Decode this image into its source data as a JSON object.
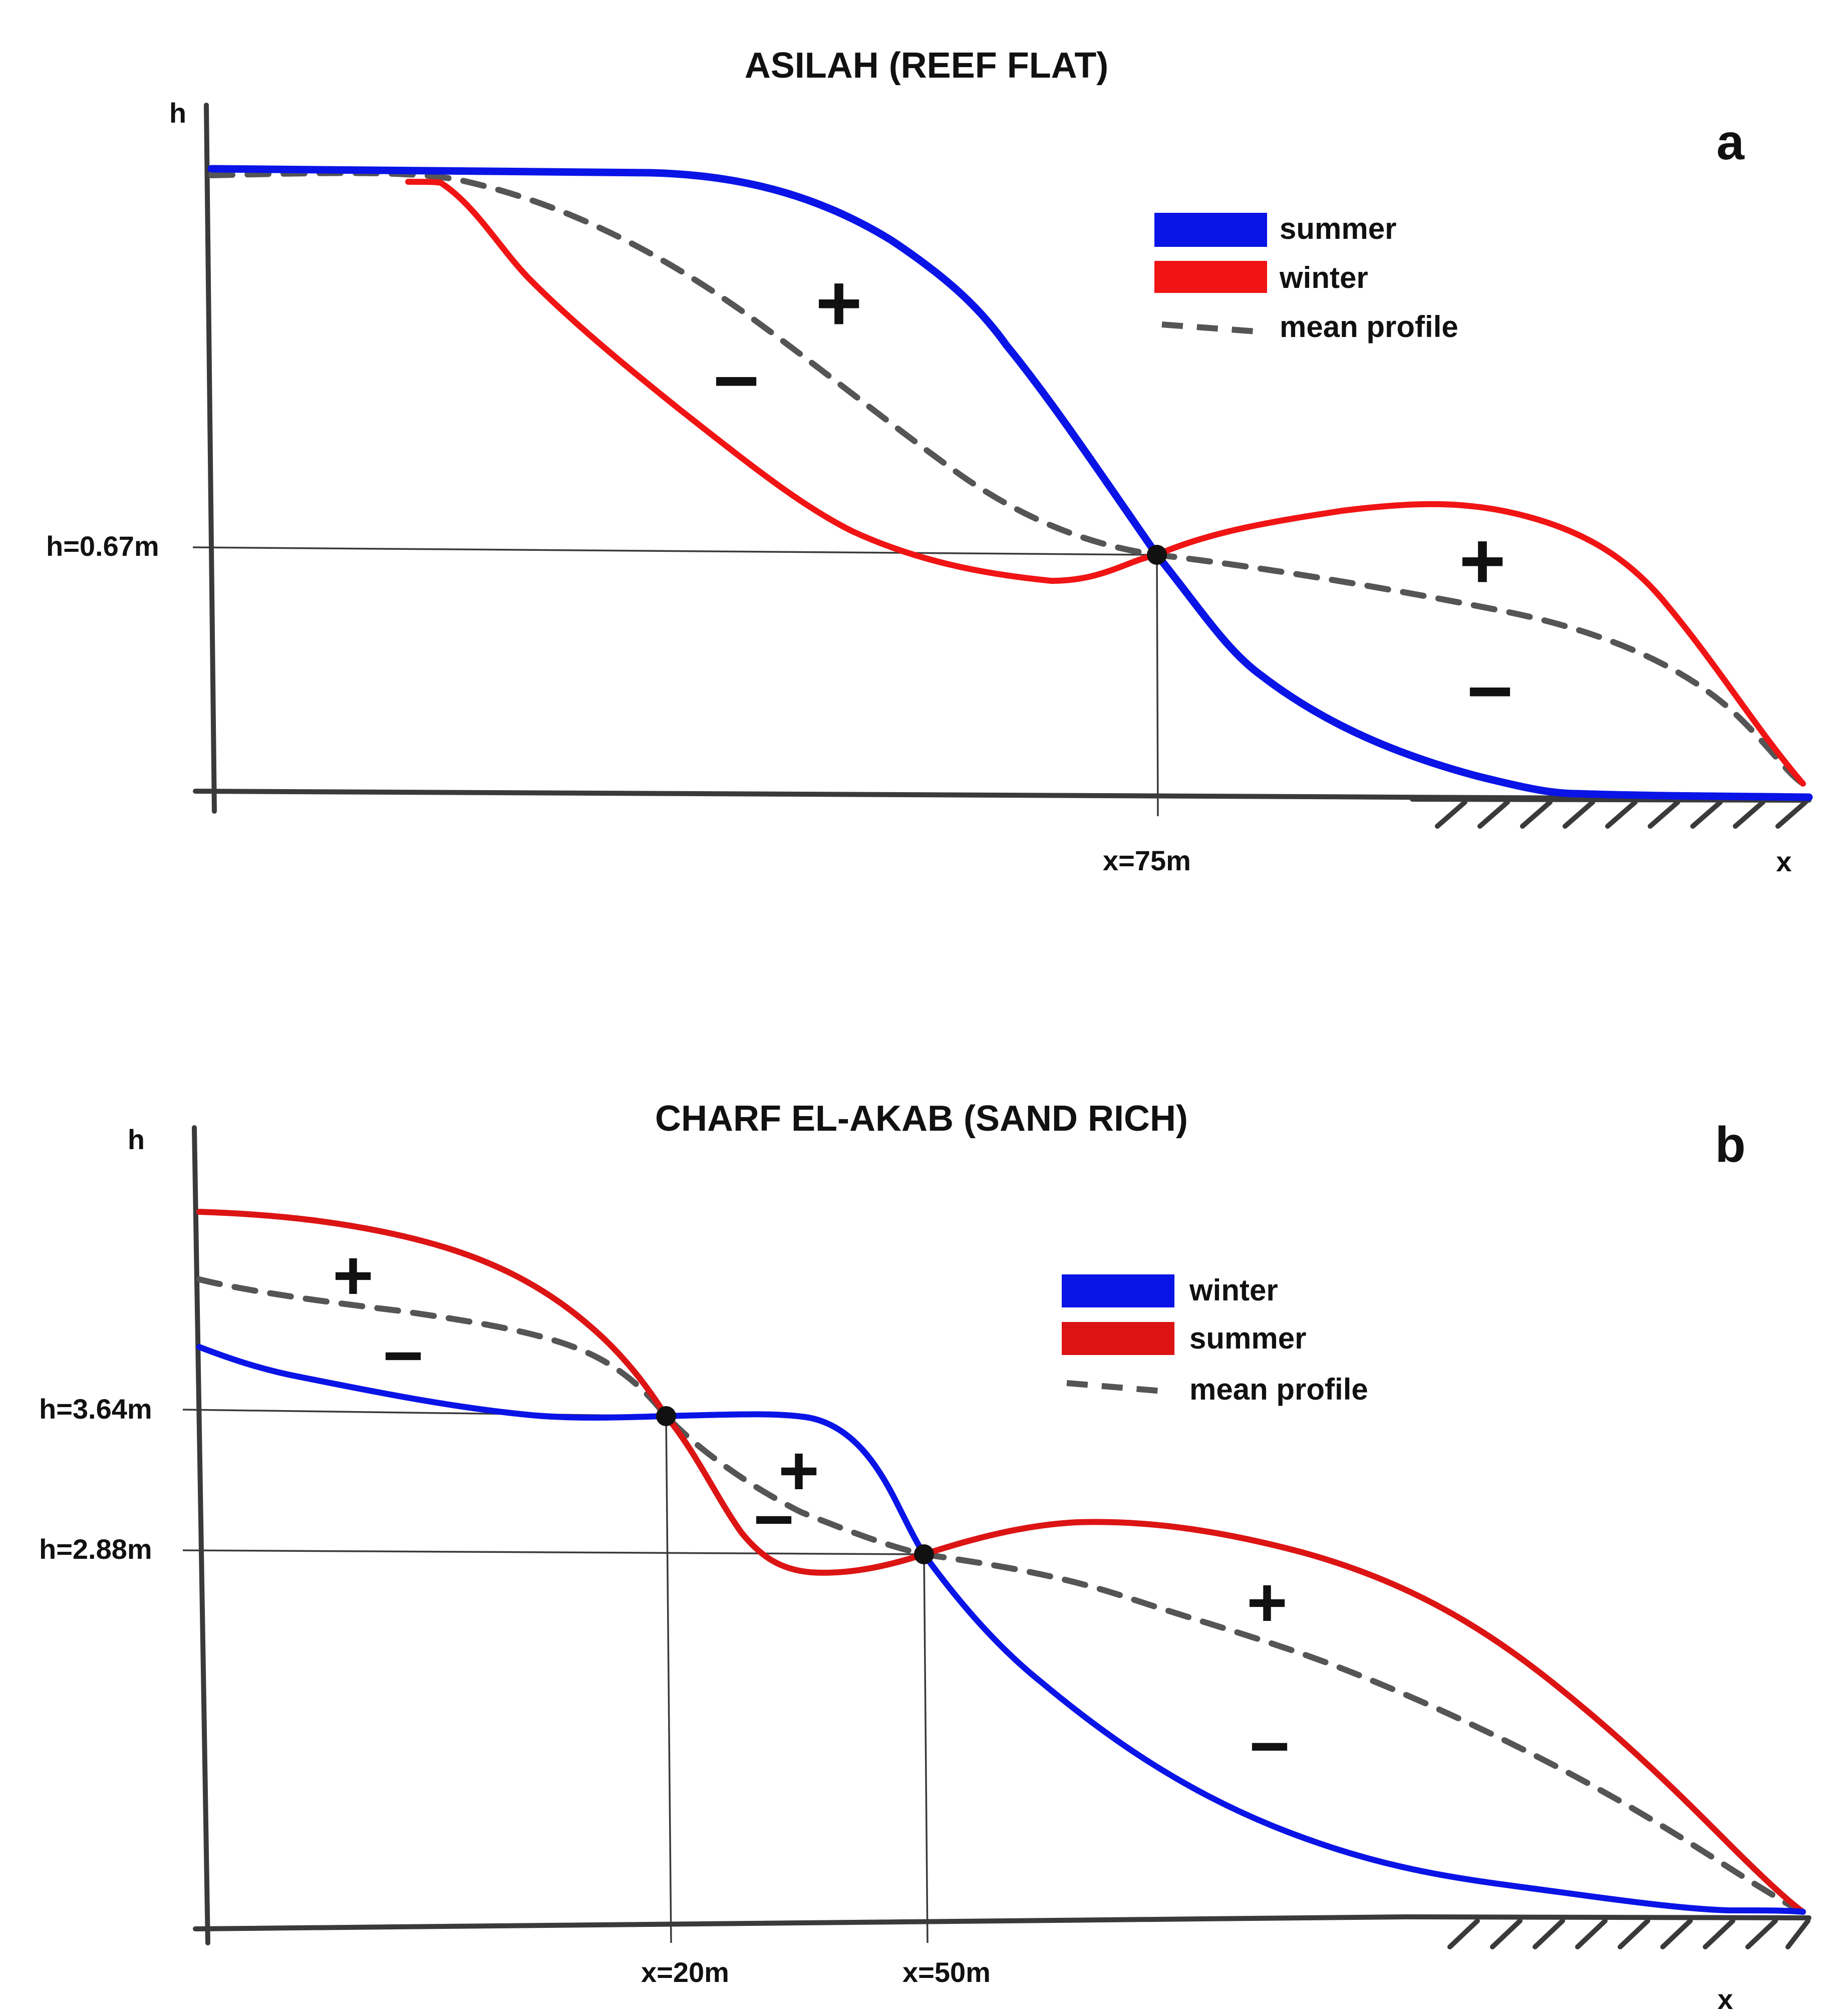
{
  "panels": {
    "a": {
      "title": "ASILAH (REEF FLAT)",
      "panel_label": "a",
      "y_axis_label": "h",
      "x_axis_label": "x",
      "h_marker": "h=0.67m",
      "x_marker": "x=75m",
      "legend": [
        {
          "label": "summer",
          "color": "#0a14e6"
        },
        {
          "label": "winter",
          "color": "#f01414"
        },
        {
          "label": "mean profile",
          "color": "#555555"
        }
      ],
      "signs": [
        {
          "symbol": "+",
          "color": "#0a14e6"
        },
        {
          "symbol": "−",
          "color": "#f01414"
        },
        {
          "symbol": "+",
          "color": "#f01414"
        },
        {
          "symbol": "−",
          "color": "#0a14e6"
        }
      ]
    },
    "b": {
      "title": "CHARF EL-AKAB (SAND RICH)",
      "panel_label": "b",
      "y_axis_label": "h",
      "x_axis_label": "x",
      "h_markers": [
        "h=3.64m",
        "h=2.88m"
      ],
      "x_markers": [
        "x=20m",
        "x=50m"
      ],
      "legend": [
        {
          "label": "winter",
          "color": "#0a14e6"
        },
        {
          "label": "summer",
          "color": "#dc1414"
        },
        {
          "label": "mean profile",
          "color": "#555555"
        }
      ],
      "signs": [
        {
          "symbol": "+",
          "color": "#dc1414"
        },
        {
          "symbol": "−",
          "color": "#0a14e6"
        },
        {
          "symbol": "+",
          "color": "#0a14e6"
        },
        {
          "symbol": "−",
          "color": "#dc1414"
        },
        {
          "symbol": "+",
          "color": "#dc1414"
        },
        {
          "symbol": "−",
          "color": "#0a14e6"
        }
      ]
    }
  }
}
